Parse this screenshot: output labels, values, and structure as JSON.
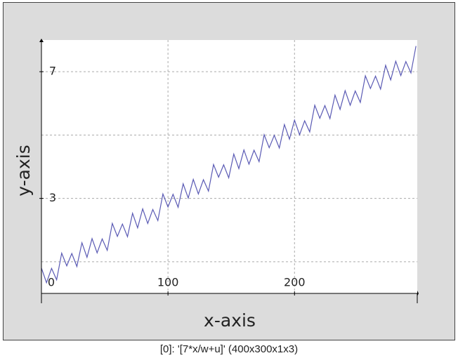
{
  "chart_data": {
    "type": "line",
    "x_label": "x-axis",
    "y_label": "y-axis",
    "x": [
      0,
      4,
      8,
      12,
      16,
      20,
      24,
      28,
      32,
      36,
      40,
      44,
      48,
      52,
      56,
      60,
      64,
      68,
      72,
      76,
      80,
      84,
      88,
      92,
      96,
      100,
      104,
      108,
      112,
      116,
      120,
      124,
      128,
      132,
      136,
      140,
      144,
      148,
      152,
      156,
      160,
      164,
      168,
      172,
      176,
      180,
      184,
      188,
      192,
      196,
      200,
      204,
      208,
      212,
      216,
      220,
      224,
      228,
      232,
      236,
      240,
      244,
      248,
      252,
      256,
      260,
      264,
      268,
      272,
      276,
      280,
      284,
      288,
      292,
      296
    ],
    "series": [
      {
        "color": "#5a5ab4",
        "values": [
          0.8,
          0.34,
          0.79,
          0.43,
          1.27,
          0.87,
          1.26,
          0.85,
          1.6,
          1.14,
          1.73,
          1.28,
          1.72,
          1.36,
          2.21,
          1.8,
          2.19,
          1.79,
          2.53,
          2.07,
          2.67,
          2.21,
          2.65,
          2.3,
          3.14,
          2.73,
          3.13,
          2.72,
          3.46,
          3.01,
          3.6,
          3.14,
          3.59,
          3.23,
          4.07,
          3.67,
          4.06,
          3.65,
          4.4,
          3.94,
          4.53,
          4.08,
          4.52,
          4.16,
          5.01,
          4.6,
          4.99,
          4.59,
          5.33,
          4.87,
          5.47,
          5.01,
          5.45,
          5.1,
          5.94,
          5.53,
          5.93,
          5.52,
          6.26,
          5.81,
          6.4,
          5.94,
          6.39,
          6.03,
          6.87,
          6.47,
          6.86,
          6.45,
          7.2,
          6.74,
          7.33,
          6.88,
          7.32,
          6.96,
          7.81
        ]
      }
    ],
    "xlim": [
      0,
      297
    ],
    "ylim": [
      0,
      8
    ],
    "xticks": [
      0,
      100,
      200
    ],
    "yticks": [
      3,
      7
    ],
    "xgrid": [
      100,
      200
    ],
    "ygrid": [
      1,
      3,
      5,
      7
    ],
    "grid": true
  },
  "caption": "[0]: '[7*x/w+u]' (400x300x1x3)"
}
